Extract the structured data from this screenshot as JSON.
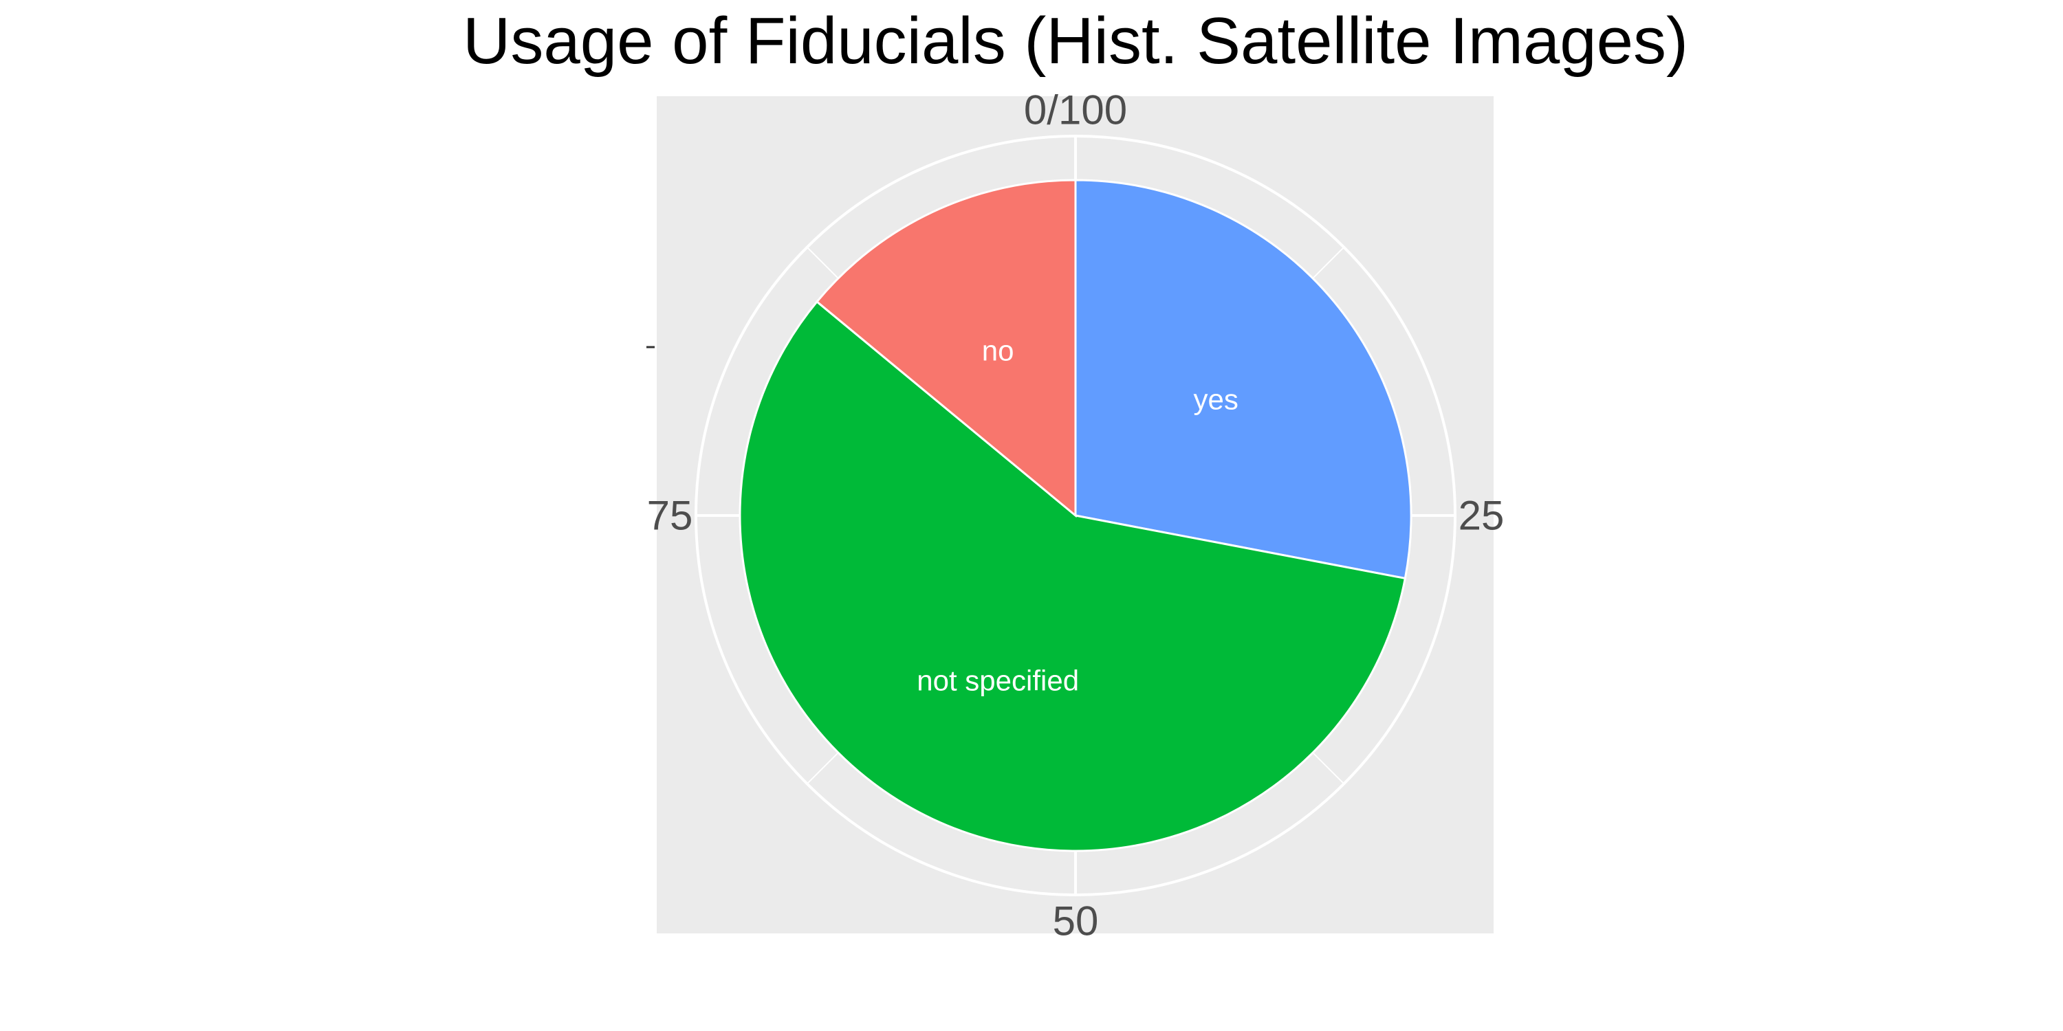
{
  "chart_data": {
    "type": "pie",
    "title": "Usage of Fiducials (Hist. Satellite Images)",
    "slices": [
      {
        "label": "yes",
        "value": 28,
        "color": "#619CFF"
      },
      {
        "label": "not specified",
        "value": 58,
        "color": "#00BA38"
      },
      {
        "label": "no",
        "value": 14,
        "color": "#F8766D"
      }
    ],
    "angle_ticks": [
      {
        "value": 0,
        "label": "0/100"
      },
      {
        "value": 25,
        "label": "25"
      },
      {
        "value": 50,
        "label": "50"
      },
      {
        "value": 75,
        "label": "75"
      }
    ],
    "range": [
      0,
      100
    ],
    "panel_background": "#EBEBEB",
    "grid": true,
    "legend": "none"
  }
}
